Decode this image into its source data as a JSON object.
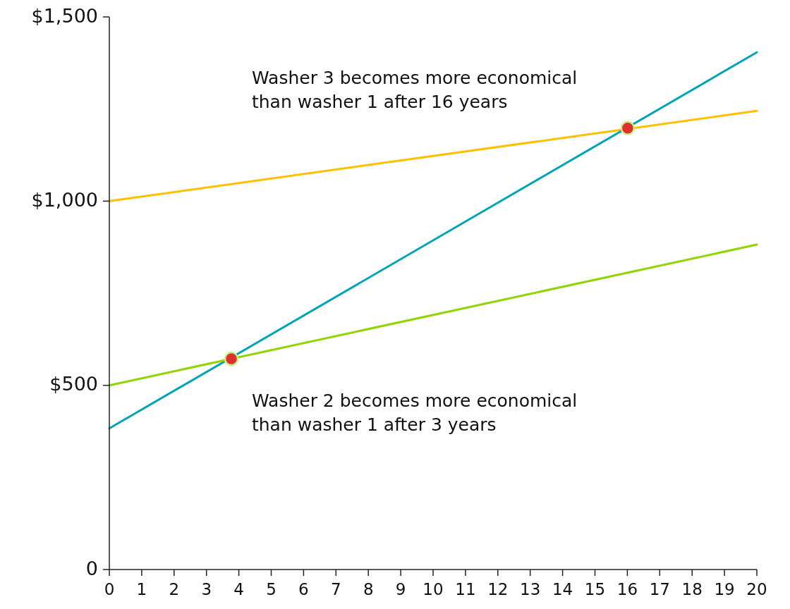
{
  "chart_data": {
    "type": "line",
    "xlim": [
      0,
      20
    ],
    "ylim": [
      0,
      1500
    ],
    "xticks": [
      0,
      1,
      2,
      3,
      4,
      5,
      6,
      7,
      8,
      9,
      10,
      11,
      12,
      13,
      14,
      15,
      16,
      17,
      18,
      19,
      20
    ],
    "yticks": [
      0,
      {
        "value": 500,
        "label": "$500"
      },
      {
        "value": 1000,
        "label": "$1,000"
      },
      {
        "value": 1500,
        "label": "$1,500"
      }
    ],
    "grid": false,
    "series": [
      {
        "color": "#ffc000",
        "x": [
          0,
          20
        ],
        "values": [
          1000,
          1245
        ]
      },
      {
        "color": "#00a5b5",
        "x": [
          0,
          20
        ],
        "values": [
          383,
          1404
        ]
      },
      {
        "color": "#92d400",
        "x": [
          0,
          20
        ],
        "values": [
          500,
          882
        ]
      },
      {
        "type": "scatter",
        "color": "#e0302e",
        "marker": "circle",
        "x": [
          3.77,
          16.01
        ],
        "values": [
          572,
          1198
        ]
      }
    ],
    "annotations": [
      "Washer 3 becomes more economical\nthan washer 1 after 16 years",
      "Washer 2 becomes more economical\nthan washer 1 after 3 years"
    ]
  }
}
